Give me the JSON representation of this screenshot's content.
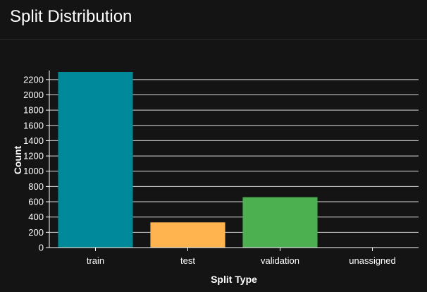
{
  "panel": {
    "title": "Split Distribution"
  },
  "chart_data": {
    "type": "bar",
    "title": "",
    "xlabel": "Split Type",
    "ylabel": "Count",
    "categories": [
      "train",
      "test",
      "validation",
      "unassigned"
    ],
    "values": [
      2300,
      330,
      660,
      0
    ],
    "colors": [
      "#00899a",
      "#ffb44f",
      "#4caf50",
      "#9e9e9e"
    ],
    "ylim": [
      0,
      2300
    ],
    "yticks": [
      0,
      200,
      400,
      600,
      800,
      1000,
      1200,
      1400,
      1600,
      1800,
      2000,
      2200
    ],
    "grid": true,
    "gridColor": "#d9d9d9",
    "axisColor": "#ffffff",
    "textColor": "#ffffff"
  }
}
